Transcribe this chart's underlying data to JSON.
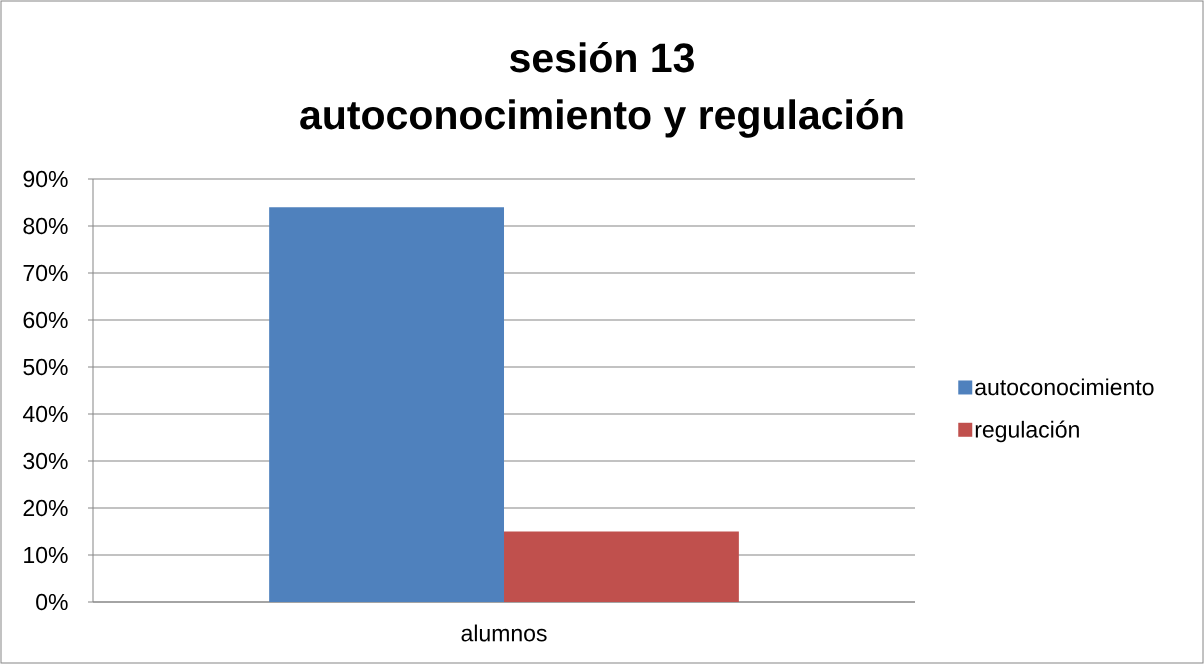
{
  "chart_data": {
    "type": "bar",
    "title": "sesión 13",
    "subtitle": "autoconocimiento y regulación",
    "categories": [
      "alumnos"
    ],
    "series": [
      {
        "name": "autoconocimiento",
        "color": "#4f81bd",
        "values": [
          84
        ]
      },
      {
        "name": "regulación",
        "color": "#c0504d",
        "values": [
          15
        ]
      }
    ],
    "ylim": [
      0,
      90
    ],
    "yticks": [
      {
        "value": 0,
        "label": "0%"
      },
      {
        "value": 10,
        "label": "10%"
      },
      {
        "value": 20,
        "label": "20%"
      },
      {
        "value": 30,
        "label": "30%"
      },
      {
        "value": 40,
        "label": "40%"
      },
      {
        "value": 50,
        "label": "50%"
      },
      {
        "value": 60,
        "label": "60%"
      },
      {
        "value": 70,
        "label": "70%"
      },
      {
        "value": 80,
        "label": "80%"
      },
      {
        "value": 90,
        "label": "90%"
      }
    ],
    "grid": "y",
    "legend": "right"
  }
}
